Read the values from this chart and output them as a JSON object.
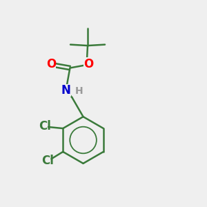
{
  "bg_color": "#efefef",
  "bond_color": "#3a7a3a",
  "bond_width": 1.8,
  "o_color": "#ff0000",
  "n_color": "#0000cc",
  "cl_color": "#3a7a3a",
  "h_color": "#999999",
  "font_size_atom": 11,
  "figsize": [
    3.0,
    3.0
  ],
  "dpi": 100,
  "xlim": [
    0,
    10
  ],
  "ylim": [
    0,
    10
  ]
}
